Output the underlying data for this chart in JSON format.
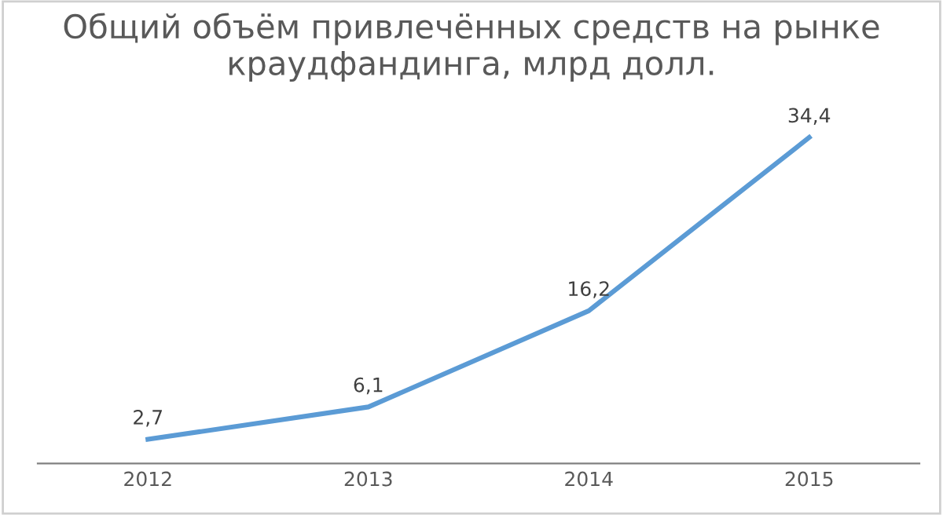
{
  "chart_data": {
    "type": "line",
    "title": "Общий объём привлечённых средств на рынке краудфандинга, млрд долл.",
    "categories": [
      "2012",
      "2013",
      "2014",
      "2015"
    ],
    "series": [
      {
        "color": "#5b9bd5",
        "values": [
          2.7,
          6.1,
          16.2,
          34.4
        ],
        "value_labels": [
          "2,7",
          "6,1",
          "16,2",
          "34,4"
        ]
      }
    ],
    "tick_labels": "x",
    "grid": false,
    "marker": "none",
    "line_style": "solid"
  }
}
